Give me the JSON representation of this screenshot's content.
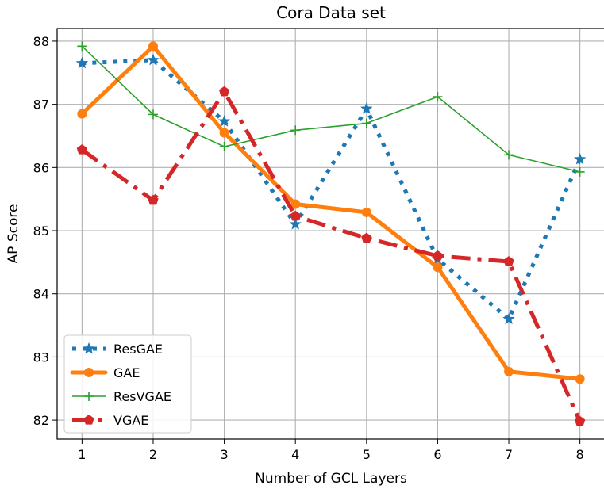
{
  "chart_data": {
    "type": "line",
    "title": "Cora Data set",
    "xlabel": "Number of GCL Layers",
    "ylabel": "AP Score",
    "x": [
      1,
      2,
      3,
      4,
      5,
      6,
      7,
      8
    ],
    "xlim": [
      0.65,
      8.35
    ],
    "ylim": [
      81.7,
      88.2
    ],
    "xticks": [
      1,
      2,
      3,
      4,
      5,
      6,
      7,
      8
    ],
    "yticks": [
      82,
      83,
      84,
      85,
      86,
      87,
      88
    ],
    "grid": true,
    "legend_position": "lower-left",
    "series": [
      {
        "name": "ResGAE",
        "values": [
          87.65,
          87.7,
          86.73,
          85.1,
          86.93,
          84.55,
          83.6,
          86.13
        ],
        "color": "#1f77b4",
        "line_style": "dotted",
        "marker": "star"
      },
      {
        "name": "GAE",
        "values": [
          86.85,
          87.92,
          86.55,
          85.42,
          85.29,
          84.42,
          82.77,
          82.65
        ],
        "color": "#ff7f0e",
        "line_style": "solid",
        "marker": "circle"
      },
      {
        "name": "ResVGAE",
        "values": [
          87.92,
          86.84,
          86.33,
          86.59,
          86.7,
          87.12,
          86.2,
          85.93
        ],
        "color": "#2ca02c",
        "line_style": "solid",
        "marker": "plus"
      },
      {
        "name": "VGAE",
        "values": [
          86.28,
          85.48,
          87.2,
          85.23,
          84.88,
          84.6,
          84.51,
          81.98
        ],
        "color": "#d62728",
        "line_style": "dashdot",
        "marker": "pentagon"
      }
    ]
  }
}
